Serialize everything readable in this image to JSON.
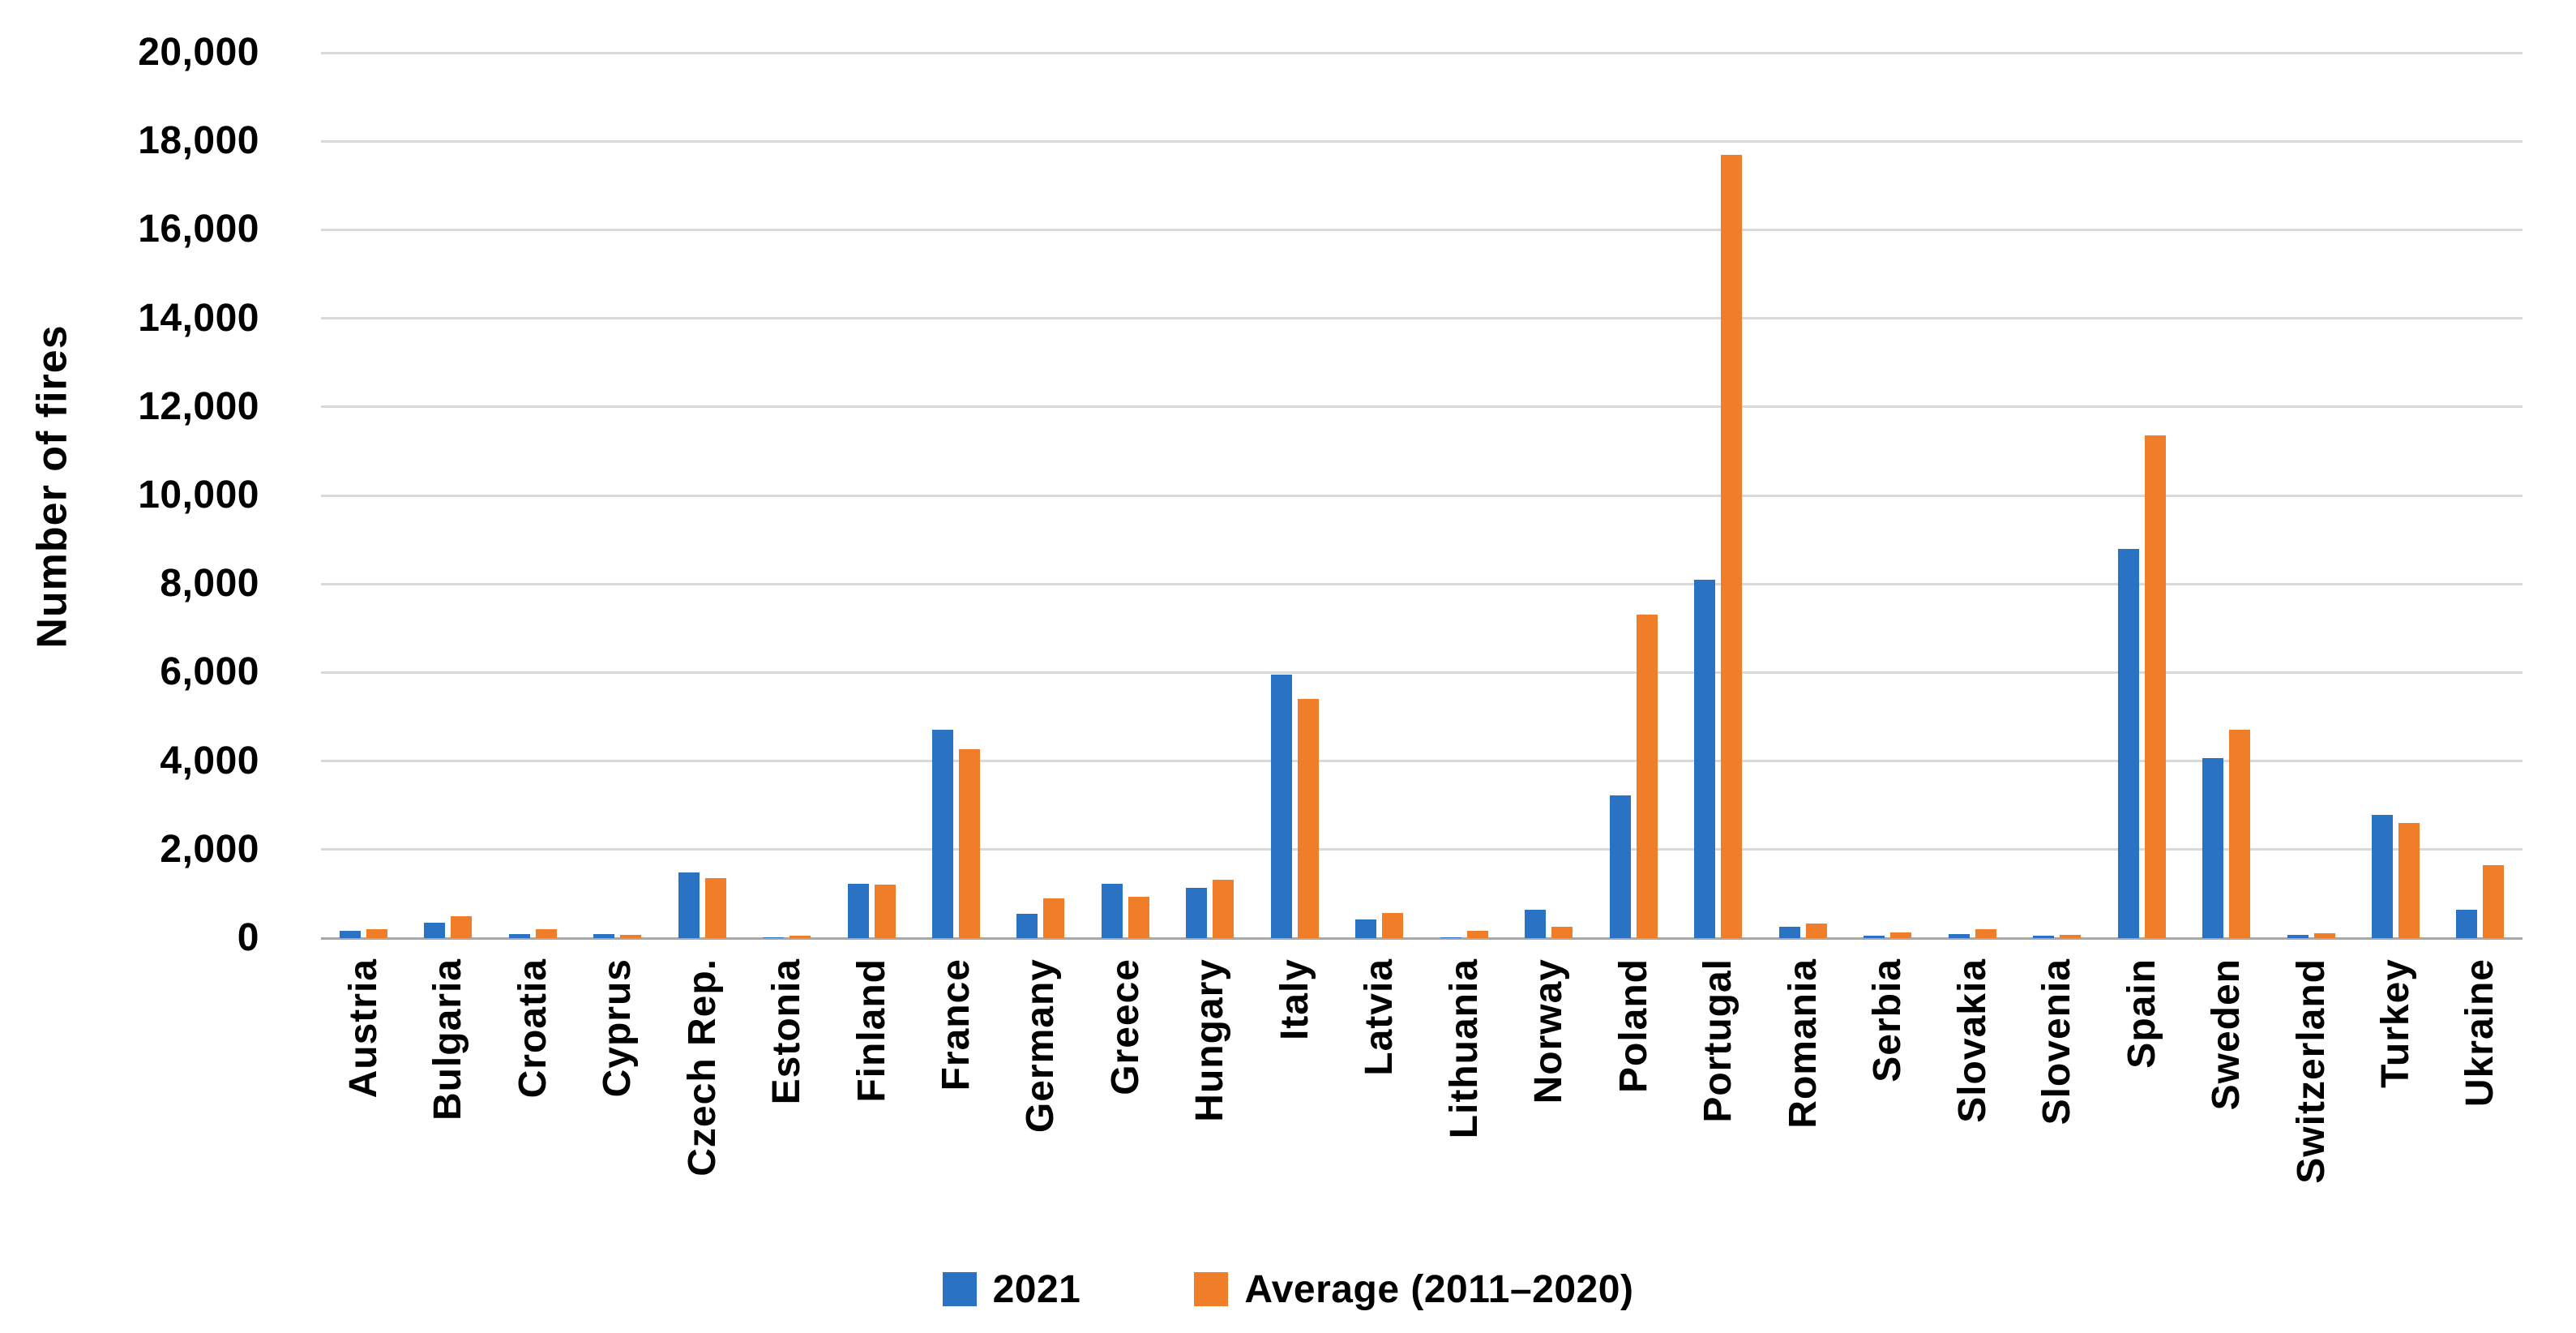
{
  "chart_data": {
    "type": "bar",
    "title": "",
    "xlabel": "",
    "ylabel": "Number of fires",
    "ylim": [
      0,
      20000
    ],
    "ytick_step": 2000,
    "ytick_labels": [
      "0",
      "2,000",
      "4,000",
      "6,000",
      "8,000",
      "10,000",
      "12,000",
      "14,000",
      "16,000",
      "18,000",
      "20,000"
    ],
    "grid": "horizontal",
    "legend_position": "bottom-center",
    "categories": [
      "Austria",
      "Bulgaria",
      "Croatia",
      "Cyprus",
      "Czech Rep.",
      "Estonia",
      "Finland",
      "France",
      "Germany",
      "Greece",
      "Hungary",
      "Italy",
      "Latvia",
      "Lithuania",
      "Norway",
      "Poland",
      "Portugal",
      "Romania",
      "Serbia",
      "Slovakia",
      "Slovenia",
      "Spain",
      "Sweden",
      "Switzerland",
      "Turkey",
      "Ukraine"
    ],
    "series": [
      {
        "name": "2021",
        "color": "#2a72c4",
        "values": [
          170,
          350,
          90,
          90,
          1480,
          10,
          1220,
          4700,
          550,
          1230,
          1130,
          5950,
          430,
          15,
          640,
          3230,
          8100,
          260,
          55,
          85,
          50,
          8800,
          4070,
          70,
          2790,
          650
        ]
      },
      {
        "name": "Average (2011–2020)",
        "color": "#f07e28",
        "values": [
          210,
          490,
          210,
          70,
          1350,
          60,
          1200,
          4270,
          900,
          930,
          1310,
          5400,
          560,
          160,
          250,
          7300,
          17700,
          330,
          130,
          210,
          80,
          11350,
          4700,
          110,
          2610,
          1650
        ]
      }
    ],
    "colors": {
      "gridline": "#d9d9d9",
      "axis_line": "#a8a8a8",
      "text": "#000000",
      "background": "#ffffff"
    }
  }
}
